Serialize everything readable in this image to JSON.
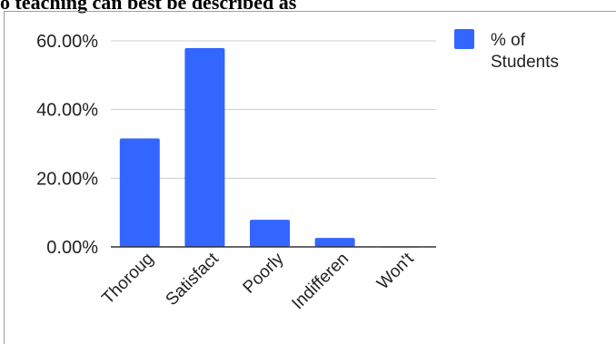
{
  "chart_data": {
    "type": "bar",
    "title": "o teaching can best be described as",
    "categories": [
      "Thoroug",
      "Satisfact",
      "Poorly",
      "Indifferen",
      "Won't"
    ],
    "series": [
      {
        "name": "% of Students",
        "values": [
          31.6,
          57.9,
          7.9,
          2.6,
          0.1
        ],
        "color": "#3366ff"
      }
    ],
    "y_tick_labels": [
      "0.00%",
      "20.00%",
      "40.00%",
      "60.00%"
    ],
    "y_tick_values": [
      0,
      20,
      40,
      60
    ],
    "ylim": [
      0,
      60
    ],
    "grid": true,
    "legend": {
      "position": "top-right",
      "label_lines": [
        "% of",
        "Students"
      ]
    }
  }
}
